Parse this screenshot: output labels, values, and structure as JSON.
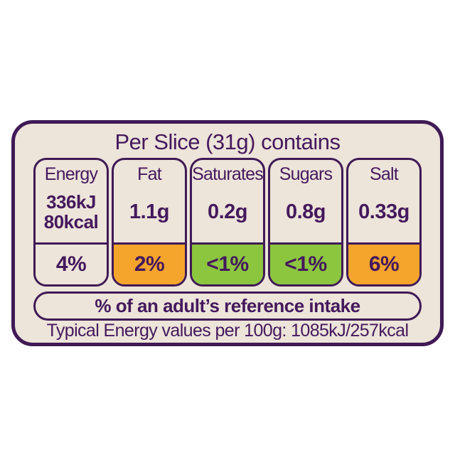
{
  "label": {
    "title": "Per Slice (31g) contains",
    "columns": [
      {
        "name": "Energy",
        "value_lines": [
          "336kJ",
          "80kcal"
        ],
        "reference_intake": "4%",
        "level": "neutral",
        "dv_bg": "#ede4da"
      },
      {
        "name": "Fat",
        "value": "1.1g",
        "reference_intake": "2%",
        "level": "medium",
        "dv_bg": "#f5a42c"
      },
      {
        "name": "Saturates",
        "value": "0.2g",
        "reference_intake": "<1%",
        "level": "low",
        "dv_bg": "#8cc63f"
      },
      {
        "name": "Sugars",
        "value": "0.8g",
        "reference_intake": "<1%",
        "level": "low",
        "dv_bg": "#8cc63f"
      },
      {
        "name": "Salt",
        "value": "0.33g",
        "reference_intake": "6%",
        "level": "medium",
        "dv_bg": "#f5a42c"
      }
    ],
    "reference_note": "% of an adult’s reference intake",
    "typical_values": "Typical Energy values per 100g: 1085kJ/257kcal"
  },
  "colors": {
    "purple": "#3f1a55",
    "cream": "#ede4da",
    "orange": "#f5a42c",
    "green": "#8cc63f",
    "page_background": "#ffffff"
  }
}
